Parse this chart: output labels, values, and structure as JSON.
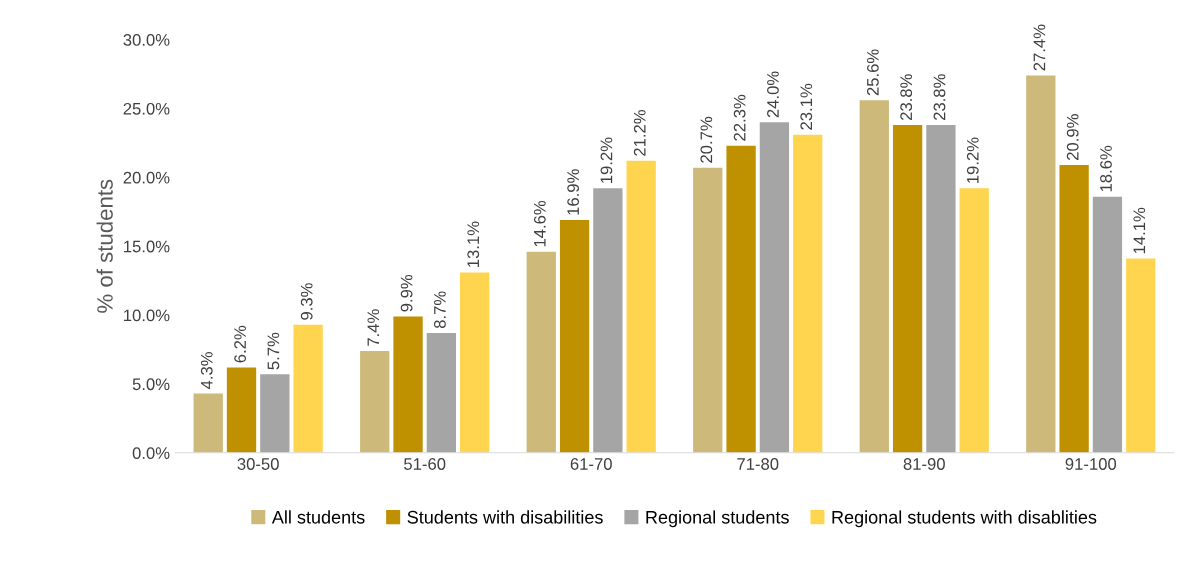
{
  "chart_data": {
    "type": "bar",
    "ylabel": "% of students",
    "categories": [
      "30-50",
      "51-60",
      "61-70",
      "71-80",
      "81-90",
      "91-100"
    ],
    "series": [
      {
        "name": "All students",
        "color": "#cdb97a",
        "values": [
          4.3,
          7.4,
          14.6,
          20.7,
          25.6,
          27.4
        ],
        "value_labels": [
          "4.3%",
          "7.4%",
          "14.6%",
          "20.7%",
          "25.6%",
          "27.4%"
        ]
      },
      {
        "name": "Students with disabilities",
        "color": "#bf9000",
        "values": [
          6.2,
          9.9,
          16.9,
          22.3,
          23.8,
          20.9
        ],
        "value_labels": [
          "6.2%",
          "9.9%",
          "16.9%",
          "22.3%",
          "23.8%",
          "20.9%"
        ]
      },
      {
        "name": "Regional students",
        "color": "#a5a5a5",
        "values": [
          5.7,
          8.7,
          19.2,
          24.0,
          23.8,
          18.6
        ],
        "value_labels": [
          "5.7%",
          "8.7%",
          "19.2%",
          "24.0%",
          "23.8%",
          "18.6%"
        ]
      },
      {
        "name": "Regional students with disablities",
        "color": "#ffd54f",
        "values": [
          9.3,
          13.1,
          21.2,
          23.1,
          19.2,
          14.1
        ],
        "value_labels": [
          "9.3%",
          "13.1%",
          "21.2%",
          "23.1%",
          "19.2%",
          "14.1%"
        ]
      }
    ],
    "ylim": [
      0,
      30
    ],
    "yticks": [
      {
        "value": 0,
        "label": "0.0%"
      },
      {
        "value": 5,
        "label": "5.0%"
      },
      {
        "value": 10,
        "label": "10.0%"
      },
      {
        "value": 15,
        "label": "15.0%"
      },
      {
        "value": 20,
        "label": "20.0%"
      },
      {
        "value": 25,
        "label": "25.0%"
      },
      {
        "value": 30,
        "label": "30.0%"
      }
    ],
    "grid": false,
    "legend": "bottom"
  }
}
